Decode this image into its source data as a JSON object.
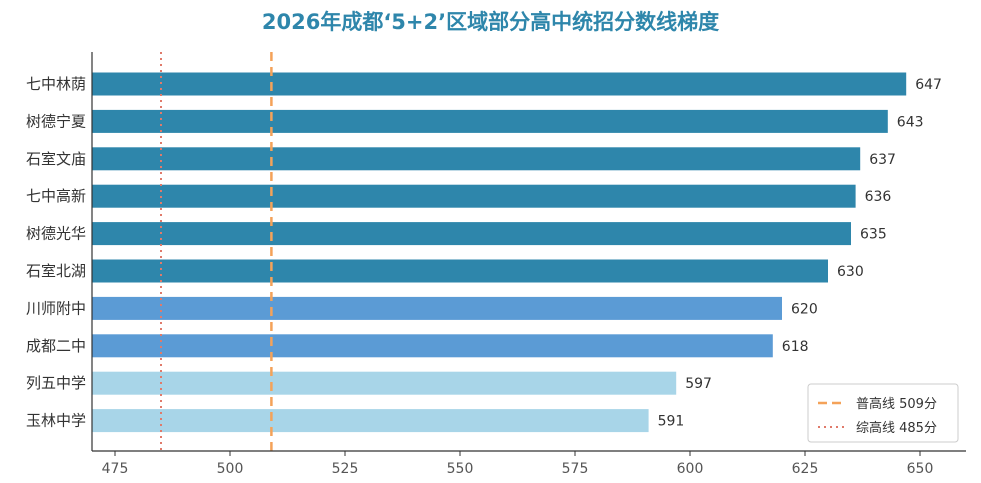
{
  "chart_data": {
    "type": "bar",
    "orientation": "horizontal",
    "title": "2026年成都‘5+2’区域部分高中统招分数线梯度",
    "categories": [
      "七中林荫",
      "树德宁夏",
      "石室文庙",
      "七中高新",
      "树德光华",
      "石室北湖",
      "川师附中",
      "成都二中",
      "列五中学",
      "玉林中学"
    ],
    "values": [
      647,
      643,
      637,
      636,
      635,
      630,
      620,
      618,
      597,
      591
    ],
    "bar_colors": [
      "#2e86ab",
      "#2e86ab",
      "#2e86ab",
      "#2e86ab",
      "#2e86ab",
      "#2e86ab",
      "#5b9bd5",
      "#5b9bd5",
      "#a8d5e8",
      "#a8d5e8"
    ],
    "xlim": [
      470,
      660
    ],
    "xticks": [
      475,
      500,
      525,
      550,
      575,
      600,
      625,
      650
    ],
    "grid": false,
    "legend_position": "bottom-right",
    "reference_lines": [
      {
        "name": "普高线 509分",
        "value": 509,
        "color": "#f4a259",
        "style": "dashed"
      },
      {
        "name": "综高线 485分",
        "value": 485,
        "color": "#e07a6a",
        "style": "dotted"
      }
    ]
  }
}
